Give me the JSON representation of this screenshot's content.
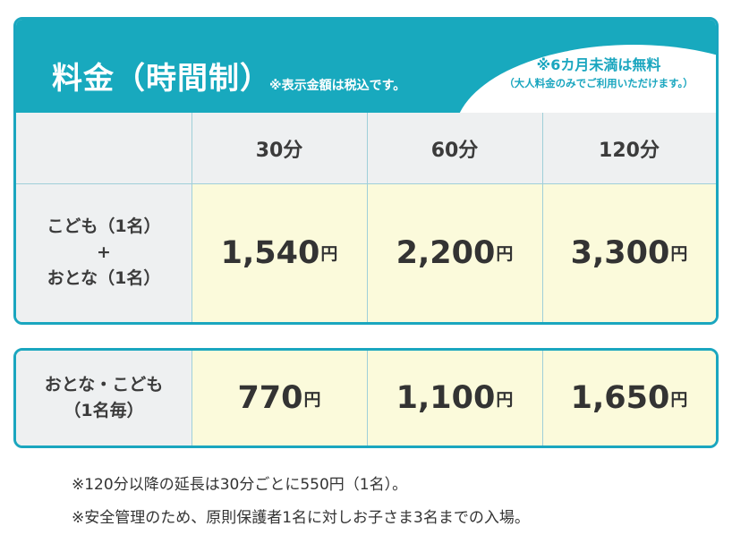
{
  "header": {
    "title": "料金（時間制）",
    "tax_note": "※表示金額は税込です。",
    "infant_line1": "※6カ月未満は無料",
    "infant_line2": "（大人料金のみでご利用いただけます。）"
  },
  "columns": [
    "30分",
    "60分",
    "120分"
  ],
  "table1": {
    "row_label_line1": "こども（1名）",
    "row_label_line2": "+",
    "row_label_line3": "おとな（1名）",
    "prices": [
      "1,540",
      "2,200",
      "3,300"
    ],
    "yen": "円"
  },
  "table2": {
    "row_label_line1": "おとな・こども",
    "row_label_line2": "（1名毎）",
    "prices": [
      "770",
      "1,100",
      "1,650"
    ],
    "yen": "円"
  },
  "notes": [
    "※120分以降の延長は30分ごとに550円（1名）。",
    "※安全管理のため、原則保護者1名に対しお子さま3名までの入場。"
  ],
  "colors": {
    "accent": "#18a9be",
    "cream": "#fbfadb",
    "gray": "#eef0f1"
  }
}
